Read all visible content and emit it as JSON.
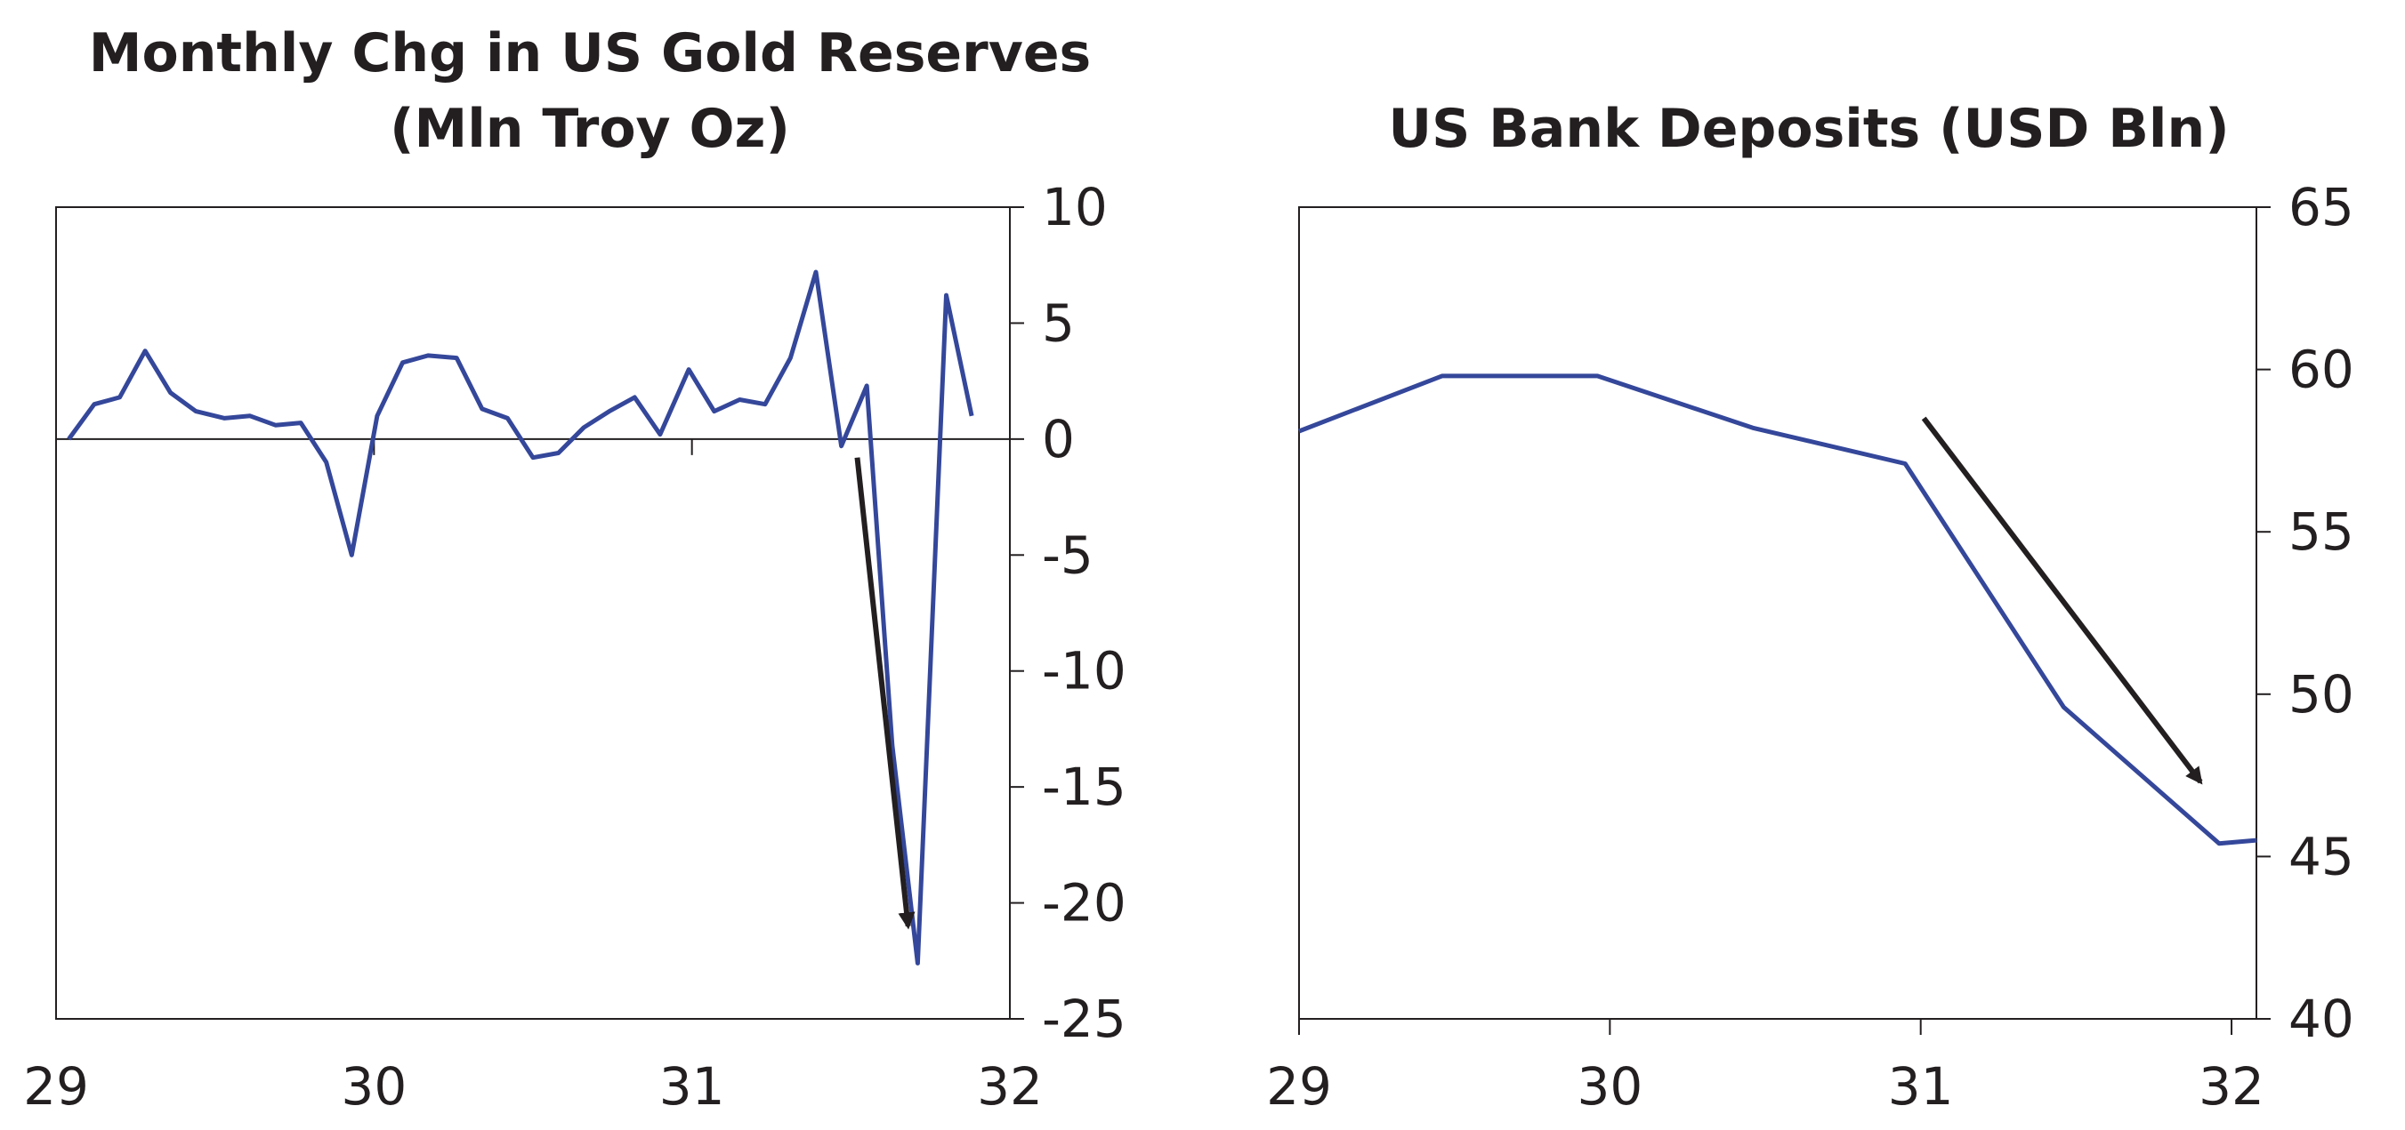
{
  "chart_data": [
    {
      "type": "line",
      "title": "Monthly Chg in US Gold Reserves",
      "subtitle": "(Mln Troy Oz)",
      "xlabel": "",
      "ylabel": "",
      "xlim": [
        29,
        32
      ],
      "ylim": [
        -25,
        10
      ],
      "x_ticks": [
        29,
        30,
        31,
        32
      ],
      "x_tick_labels": [
        "29",
        "30",
        "31",
        "32"
      ],
      "y_ticks": [
        10,
        5,
        0,
        -5,
        -10,
        -15,
        -20,
        -25
      ],
      "y_tick_labels": [
        "10",
        "5",
        "0",
        "-5",
        "-10",
        "-15",
        "-20",
        "-25"
      ],
      "y_axis_side": "right",
      "grid": false,
      "zero_line": true,
      "color": "#34479a",
      "x": [
        29.04,
        29.12,
        29.2,
        29.28,
        29.36,
        29.44,
        29.53,
        29.61,
        29.69,
        29.77,
        29.85,
        29.93,
        30.01,
        30.09,
        30.17,
        30.26,
        30.34,
        30.42,
        30.5,
        30.58,
        30.66,
        30.74,
        30.82,
        30.9,
        30.99,
        31.07,
        31.15,
        31.23,
        31.31,
        31.39,
        31.47,
        31.55,
        31.63,
        31.71,
        31.8,
        31.88
      ],
      "values": [
        0.0,
        1.5,
        1.8,
        3.8,
        2.0,
        1.2,
        0.9,
        1.0,
        0.6,
        0.7,
        -1.0,
        -5.0,
        1.0,
        3.3,
        3.6,
        3.5,
        1.3,
        0.9,
        -0.8,
        -0.6,
        0.5,
        1.2,
        1.8,
        0.2,
        3.0,
        1.2,
        1.7,
        1.5,
        3.5,
        7.2,
        -0.3,
        2.3,
        -13.2,
        -22.6,
        6.2,
        1.0
      ],
      "annotations": [
        {
          "type": "arrow",
          "from": [
            31.52,
            -0.8
          ],
          "to": [
            31.68,
            -21.0
          ]
        }
      ]
    },
    {
      "type": "line",
      "title": "US Bank Deposits (USD Bln)",
      "xlabel": "",
      "ylabel": "",
      "xlim": [
        29,
        32.08
      ],
      "ylim": [
        40,
        65
      ],
      "x_ticks": [
        29,
        30,
        31,
        32
      ],
      "x_tick_labels": [
        "29",
        "30",
        "31",
        "32"
      ],
      "y_ticks": [
        65,
        60,
        55,
        50,
        45,
        40
      ],
      "y_tick_labels": [
        "65",
        "60",
        "55",
        "50",
        "45",
        "40"
      ],
      "y_axis_side": "right",
      "grid": false,
      "color": "#34479a",
      "x": [
        29.0,
        29.46,
        29.96,
        30.46,
        30.95,
        31.46,
        31.96,
        32.08
      ],
      "values": [
        58.1,
        59.8,
        59.8,
        58.2,
        57.1,
        49.6,
        45.4,
        45.5
      ],
      "annotations": [
        {
          "type": "arrow",
          "from": [
            31.01,
            58.5
          ],
          "to": [
            31.9,
            47.3
          ]
        }
      ]
    }
  ]
}
